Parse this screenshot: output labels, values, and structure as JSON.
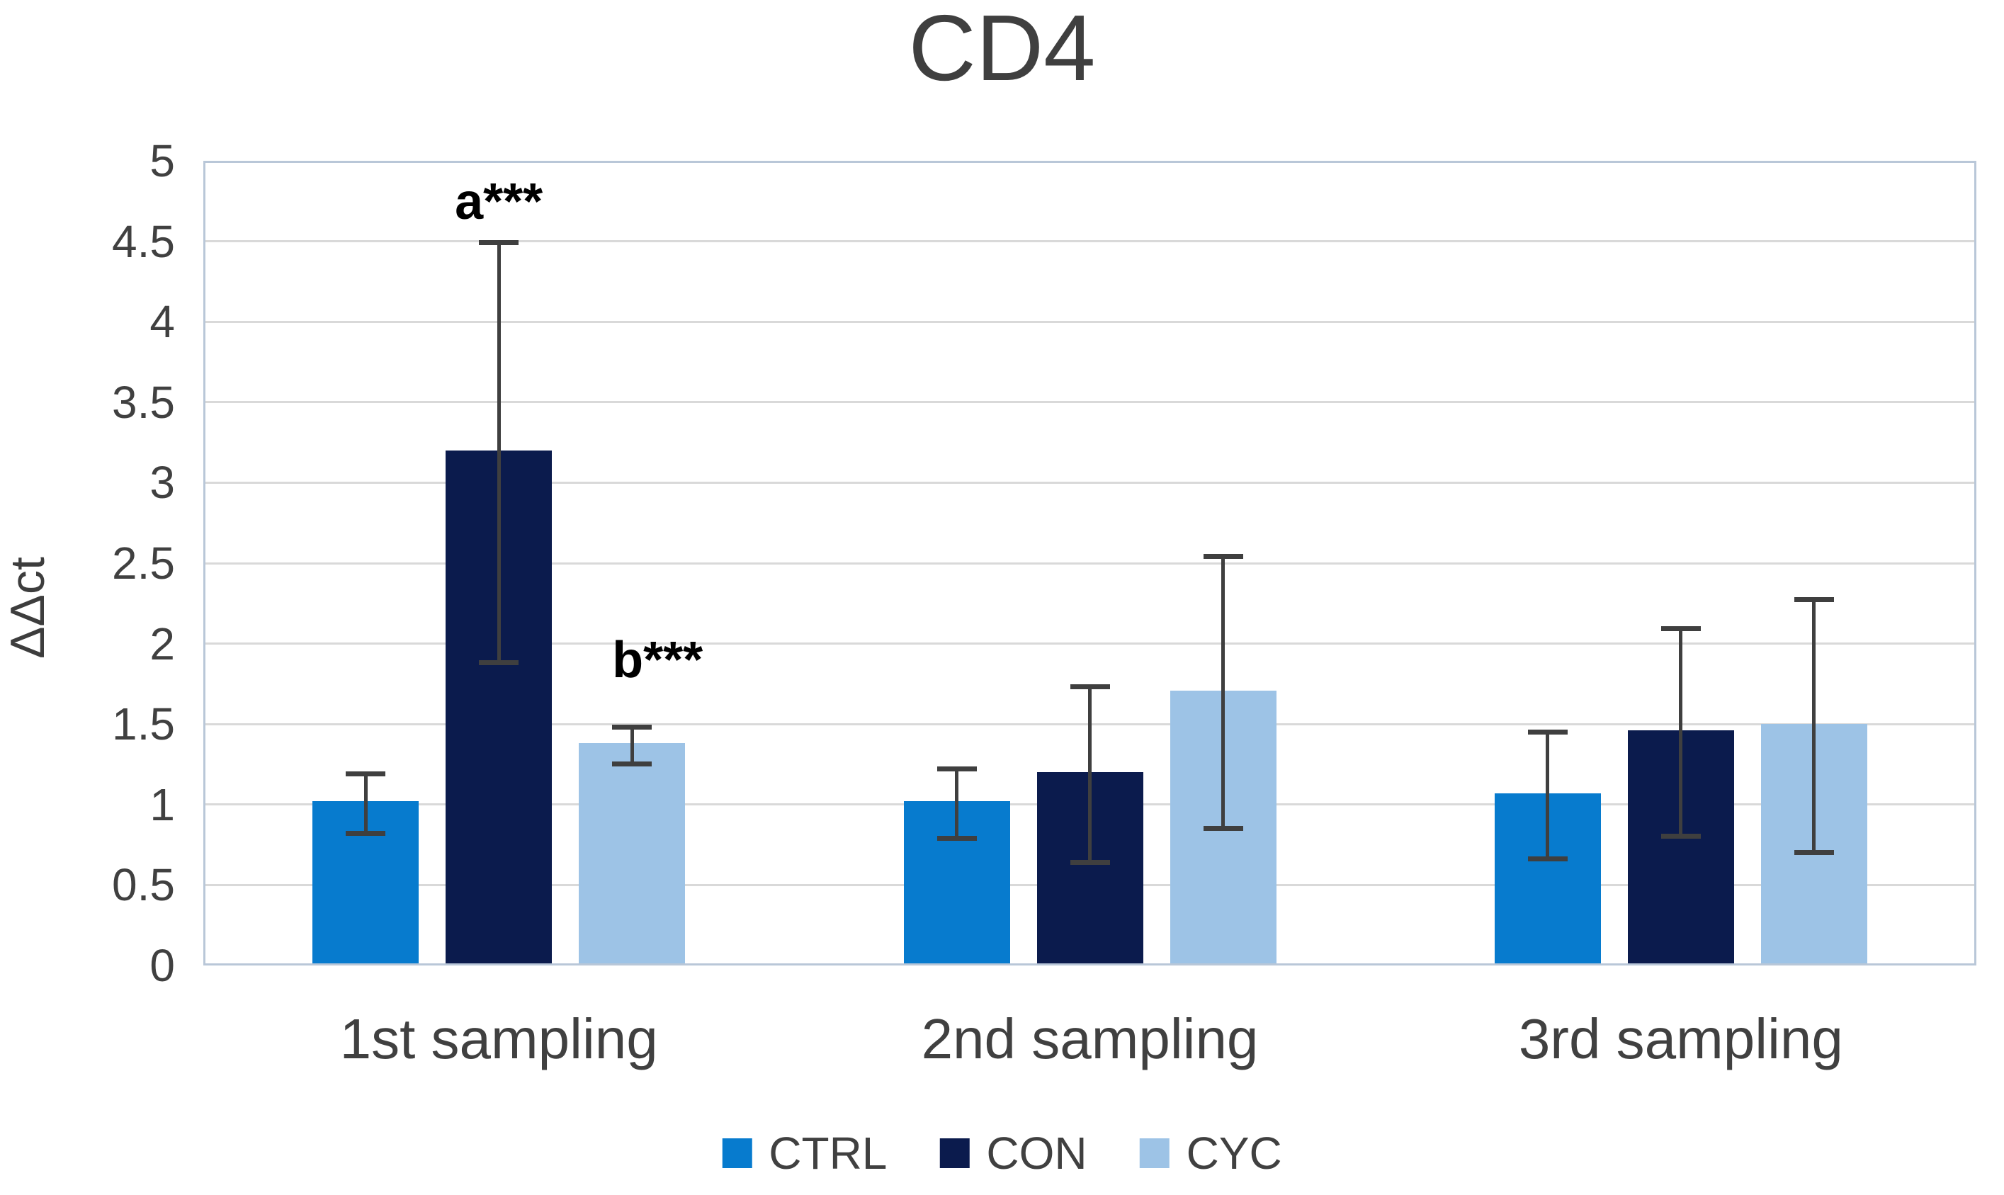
{
  "chart_data": {
    "type": "bar",
    "title": "CD4",
    "xlabel": "",
    "ylabel": "ΔΔct",
    "categories": [
      "1st sampling",
      "2nd sampling",
      "3rd sampling"
    ],
    "series": [
      {
        "name": "CTRL",
        "color": "#077bce",
        "values": [
          1.02,
          1.02,
          1.07
        ],
        "errors": [
          0.2,
          0.23,
          0.41
        ]
      },
      {
        "name": "CON",
        "color": "#0b1b4d",
        "values": [
          3.2,
          1.2,
          1.46
        ],
        "errors": [
          1.32,
          0.56,
          0.66
        ]
      },
      {
        "name": "CYC",
        "color": "#9dc3e6",
        "values": [
          1.38,
          1.71,
          1.5
        ],
        "errors": [
          0.13,
          0.86,
          0.8
        ]
      }
    ],
    "ylim": [
      0,
      5
    ],
    "ytick_step": 0.5,
    "ytick_labels": [
      "0",
      "0.5",
      "1",
      "1.5",
      "2",
      "2.5",
      "3",
      "3.5",
      "4",
      "4.5",
      "5"
    ],
    "grid": true,
    "legend_position": "bottom",
    "error_bar_color": "#3f3f3f",
    "gridline_color": "#d9d9d9",
    "plot_border_color": "#b9c7d8",
    "text_color": "#404040",
    "annotations": [
      {
        "text": "a***",
        "category_index": 0,
        "series_index": 1,
        "y": 4.76,
        "dx": 0
      },
      {
        "text": "b***",
        "category_index": 0,
        "series_index": 2,
        "y": 1.91,
        "dx": 36
      }
    ]
  }
}
